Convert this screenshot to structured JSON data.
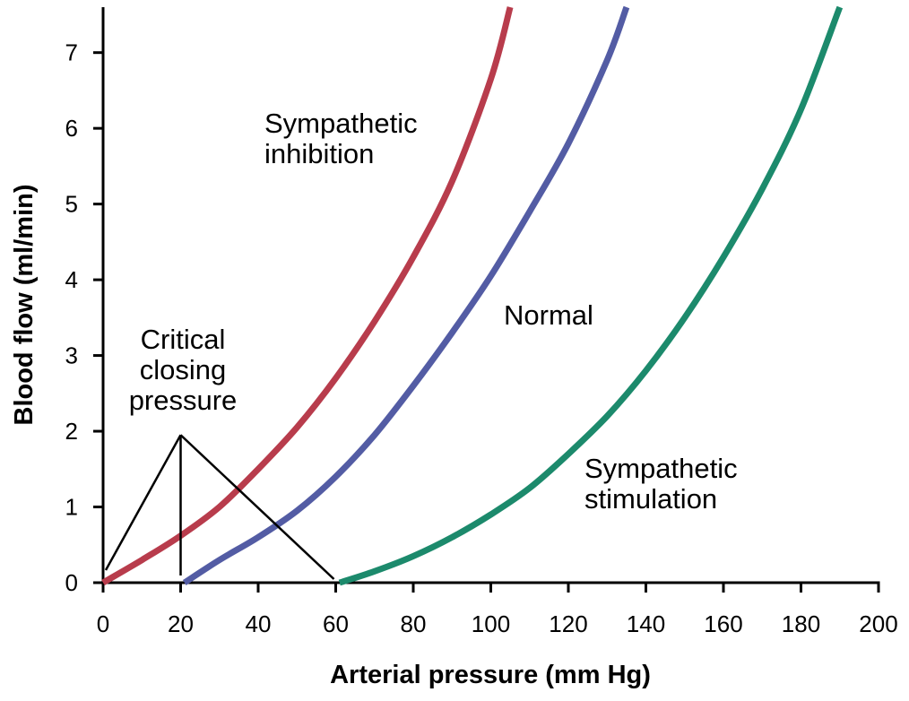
{
  "chart_data": {
    "type": "line",
    "xlabel": "Arterial pressure (mm Hg)",
    "ylabel": "Blood flow (ml/min)",
    "xlim": [
      0,
      200
    ],
    "ylim": [
      0,
      7.6
    ],
    "x_ticks": [
      0,
      20,
      40,
      60,
      80,
      100,
      120,
      140,
      160,
      180,
      200
    ],
    "y_ticks": [
      0,
      1,
      2,
      3,
      4,
      5,
      6,
      7
    ],
    "grid": false,
    "series": [
      {
        "name": "Sympathetic inhibition",
        "color": "#b83c4c",
        "x": [
          0,
          10,
          20,
          30,
          40,
          50,
          60,
          70,
          80,
          90,
          100,
          105
        ],
        "y": [
          0,
          0.3,
          0.62,
          1.0,
          1.5,
          2.05,
          2.7,
          3.45,
          4.3,
          5.3,
          6.65,
          7.6
        ]
      },
      {
        "name": "Normal",
        "color": "#535ca4",
        "x": [
          21,
          30,
          40,
          50,
          60,
          70,
          80,
          90,
          100,
          110,
          120,
          130,
          135
        ],
        "y": [
          0,
          0.3,
          0.6,
          0.95,
          1.4,
          1.95,
          2.6,
          3.3,
          4.05,
          4.9,
          5.8,
          6.9,
          7.6
        ]
      },
      {
        "name": "Sympathetic stimulation",
        "color": "#1c8a6c",
        "x": [
          61,
          70,
          80,
          90,
          100,
          110,
          120,
          130,
          140,
          150,
          160,
          170,
          180,
          190
        ],
        "y": [
          0,
          0.15,
          0.35,
          0.6,
          0.9,
          1.25,
          1.7,
          2.2,
          2.8,
          3.5,
          4.3,
          5.2,
          6.25,
          7.6
        ]
      }
    ],
    "annotations": [
      {
        "text_lines": [
          "Sympathetic",
          "inhibition"
        ],
        "series": "Sympathetic inhibition"
      },
      {
        "text_lines": [
          "Normal"
        ],
        "series": "Normal"
      },
      {
        "text_lines": [
          "Sympathetic",
          "stimulation"
        ],
        "series": "Sympathetic stimulation"
      },
      {
        "text_lines": [
          "Critical",
          "closing",
          "pressure"
        ],
        "points_to_x": [
          0,
          20,
          60
        ],
        "apex": {
          "x": 20,
          "y": 1.95
        }
      }
    ]
  }
}
